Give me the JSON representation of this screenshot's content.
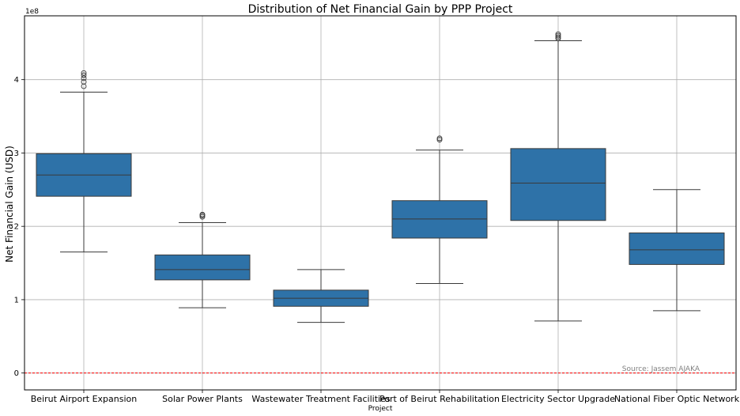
{
  "chart_data": {
    "type": "box",
    "title": "Distribution of Net Financial Gain by PPP Project",
    "xlabel": "Project",
    "ylabel": "Net Financial Gain (USD)",
    "y_scale_label": "1e8",
    "ylim": [
      -0.23,
      4.87
    ],
    "yticks": [
      0,
      1,
      2,
      3,
      4
    ],
    "ytick_labels": [
      "0",
      "1",
      "2",
      "3",
      "4"
    ],
    "grid": true,
    "box_color": "#2e72a8",
    "reference_line": {
      "y": 0,
      "color": "#ff0000",
      "style": "dashed"
    },
    "annotation": "Source: Jassem AJAKA",
    "categories": [
      "Beirut Airport Expansion",
      "Solar Power Plants",
      "Wastewater Treatment Facilities",
      "Port of Beirut Rehabilitation",
      "Electricity Sector Upgrade",
      "National Fiber Optic Network"
    ],
    "boxes": [
      {
        "whisker_low": 1.65,
        "q1": 2.41,
        "median": 2.7,
        "q3": 2.99,
        "whisker_high": 3.83,
        "outliers": [
          3.91,
          3.97,
          4.02,
          4.06,
          4.09
        ]
      },
      {
        "whisker_low": 0.89,
        "q1": 1.27,
        "median": 1.41,
        "q3": 1.61,
        "whisker_high": 2.05,
        "outliers": [
          2.13,
          2.15,
          2.16
        ]
      },
      {
        "whisker_low": 0.69,
        "q1": 0.91,
        "median": 1.02,
        "q3": 1.13,
        "whisker_high": 1.41,
        "outliers": []
      },
      {
        "whisker_low": 1.22,
        "q1": 1.84,
        "median": 2.1,
        "q3": 2.35,
        "whisker_high": 3.04,
        "outliers": [
          3.18,
          3.2
        ]
      },
      {
        "whisker_low": 0.71,
        "q1": 2.08,
        "median": 2.59,
        "q3": 3.06,
        "whisker_high": 4.53,
        "outliers": [
          4.56,
          4.58,
          4.6,
          4.62
        ]
      },
      {
        "whisker_low": 0.85,
        "q1": 1.48,
        "median": 1.68,
        "q3": 1.91,
        "whisker_high": 2.5,
        "outliers": []
      }
    ]
  }
}
